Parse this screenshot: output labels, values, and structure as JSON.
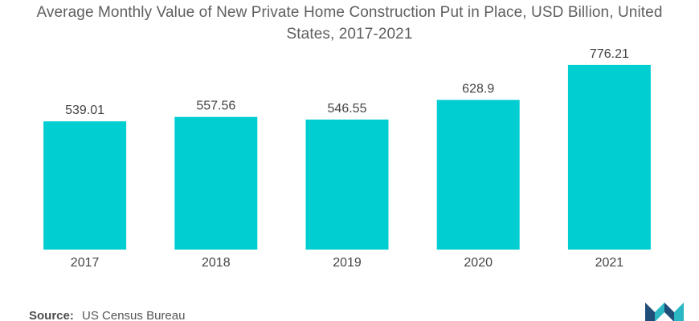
{
  "chart_data": {
    "type": "bar",
    "title_line1": "Average Monthly Value of New Private Home Construction Put in Place, USD Billion, United",
    "title_line2": "States, 2017-2021",
    "categories": [
      "2017",
      "2018",
      "2019",
      "2020",
      "2021"
    ],
    "values": [
      539.01,
      557.56,
      546.55,
      628.9,
      776.21
    ],
    "value_labels": [
      "539.01",
      "557.56",
      "546.55",
      "628.9",
      "776.21"
    ],
    "xlabel": "",
    "ylabel": "",
    "ylim": [
      0,
      850
    ],
    "grid": false,
    "legend": "none",
    "bar_color": "#00ced1"
  },
  "source": {
    "label": "Source:",
    "text": "US Census Bureau"
  },
  "logo": {
    "icon": "mordor-intelligence-logo-icon",
    "color_dark": "#1f4e79",
    "color_light": "#2bb7c4"
  }
}
